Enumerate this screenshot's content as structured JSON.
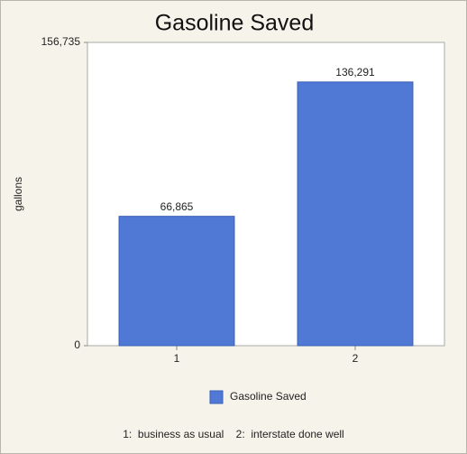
{
  "chart_data": {
    "type": "bar",
    "title": "Gasoline Saved",
    "y_label": "gallons",
    "categories": [
      "1",
      "2"
    ],
    "series": [
      {
        "name": "Gasoline Saved",
        "color": "#5079d6",
        "values": [
          66865,
          136291
        ],
        "value_labels": [
          "66,865",
          "136,291"
        ]
      }
    ],
    "ylim": [
      0,
      156735
    ],
    "yticks": [
      0,
      {
        "value": 156735,
        "label": "156,735"
      }
    ],
    "annotations": [
      "1:  business as usual    2:  interstate done well"
    ]
  }
}
